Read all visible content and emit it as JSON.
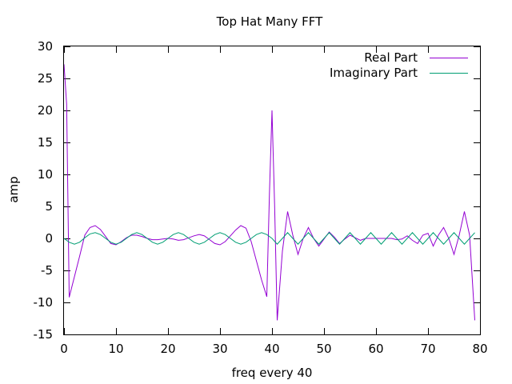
{
  "chart_data": {
    "type": "line",
    "title": "Top Hat Many FFT",
    "xlabel": "freq every 40",
    "ylabel": "amp",
    "xlim": [
      0,
      80
    ],
    "ylim": [
      -15,
      30
    ],
    "x_ticks": [
      0,
      10,
      20,
      30,
      40,
      50,
      60,
      70,
      80
    ],
    "y_ticks": [
      -15,
      -10,
      -5,
      0,
      5,
      10,
      15,
      20,
      25,
      30
    ],
    "grid": false,
    "legend_position": "top-right",
    "series": [
      {
        "name": "Real Part",
        "color": "#9400d3",
        "points": [
          [
            0,
            27.2
          ],
          [
            0.5,
            21
          ],
          [
            1,
            -9.2
          ],
          [
            2,
            -6
          ],
          [
            3,
            -2.8
          ],
          [
            4,
            0.5
          ],
          [
            5,
            1.7
          ],
          [
            6,
            2
          ],
          [
            7,
            1.4
          ],
          [
            8,
            0.3
          ],
          [
            9,
            -0.8
          ],
          [
            10,
            -1
          ],
          [
            11,
            -0.5
          ],
          [
            12,
            0.1
          ],
          [
            13,
            0.5
          ],
          [
            14,
            0.5
          ],
          [
            15,
            0.3
          ],
          [
            16,
            0
          ],
          [
            17,
            -0.2
          ],
          [
            18,
            -0.2
          ],
          [
            19,
            -0.1
          ],
          [
            20,
            0
          ],
          [
            21,
            -0.1
          ],
          [
            22,
            -0.3
          ],
          [
            23,
            -0.2
          ],
          [
            24,
            0.1
          ],
          [
            25,
            0.4
          ],
          [
            26,
            0.6
          ],
          [
            27,
            0.4
          ],
          [
            28,
            -0.2
          ],
          [
            29,
            -0.8
          ],
          [
            30,
            -1
          ],
          [
            31,
            -0.5
          ],
          [
            32,
            0.4
          ],
          [
            33,
            1.3
          ],
          [
            34,
            2
          ],
          [
            35,
            1.6
          ],
          [
            36,
            -0.5
          ],
          [
            37,
            -3.5
          ],
          [
            38,
            -6.5
          ],
          [
            39,
            -9.1
          ],
          [
            39.5,
            7
          ],
          [
            40,
            20
          ],
          [
            40.5,
            5
          ],
          [
            41,
            -12.8
          ],
          [
            42,
            -2
          ],
          [
            43,
            4.2
          ],
          [
            44,
            0.5
          ],
          [
            45,
            -2.5
          ],
          [
            46,
            0
          ],
          [
            47,
            1.7
          ],
          [
            48,
            0
          ],
          [
            49,
            -1.2
          ],
          [
            50,
            -0.1
          ],
          [
            51,
            1
          ],
          [
            52,
            0.2
          ],
          [
            53,
            -0.8
          ],
          [
            54,
            -0.1
          ],
          [
            55,
            0.5
          ],
          [
            56,
            0.1
          ],
          [
            57,
            -0.3
          ],
          [
            58,
            0
          ],
          [
            59,
            0
          ],
          [
            60,
            0
          ],
          [
            61,
            0
          ],
          [
            62,
            0
          ],
          [
            63,
            0
          ],
          [
            64,
            -0.2
          ],
          [
            65,
            -0.1
          ],
          [
            66,
            0.4
          ],
          [
            67,
            -0.3
          ],
          [
            68,
            -0.8
          ],
          [
            69,
            0.5
          ],
          [
            70,
            0.8
          ],
          [
            71,
            -1.2
          ],
          [
            72,
            0.5
          ],
          [
            73,
            1.7
          ],
          [
            74,
            0
          ],
          [
            75,
            -2.5
          ],
          [
            76,
            0.5
          ],
          [
            77,
            4.2
          ],
          [
            78,
            0.5
          ],
          [
            79,
            -12.8
          ]
        ]
      },
      {
        "name": "Imaginary Part",
        "color": "#009e73",
        "points": [
          [
            0,
            0
          ],
          [
            1,
            -0.6
          ],
          [
            2,
            -0.9
          ],
          [
            3,
            -0.6
          ],
          [
            4,
            0.1
          ],
          [
            5,
            0.7
          ],
          [
            6,
            0.9
          ],
          [
            7,
            0.6
          ],
          [
            8,
            0
          ],
          [
            9,
            -0.6
          ],
          [
            10,
            -0.9
          ],
          [
            11,
            -0.6
          ],
          [
            12,
            0
          ],
          [
            13,
            0.6
          ],
          [
            14,
            0.9
          ],
          [
            15,
            0.6
          ],
          [
            16,
            0
          ],
          [
            17,
            -0.6
          ],
          [
            18,
            -0.9
          ],
          [
            19,
            -0.6
          ],
          [
            20,
            0
          ],
          [
            21,
            0.6
          ],
          [
            22,
            0.9
          ],
          [
            23,
            0.6
          ],
          [
            24,
            0
          ],
          [
            25,
            -0.6
          ],
          [
            26,
            -0.9
          ],
          [
            27,
            -0.6
          ],
          [
            28,
            0
          ],
          [
            29,
            0.6
          ],
          [
            30,
            0.9
          ],
          [
            31,
            0.6
          ],
          [
            32,
            0
          ],
          [
            33,
            -0.6
          ],
          [
            34,
            -0.9
          ],
          [
            35,
            -0.6
          ],
          [
            36,
            0
          ],
          [
            37,
            0.6
          ],
          [
            38,
            0.9
          ],
          [
            39,
            0.6
          ],
          [
            40,
            0
          ],
          [
            41,
            -0.9
          ],
          [
            42,
            0
          ],
          [
            43,
            0.9
          ],
          [
            44,
            0
          ],
          [
            45,
            -0.9
          ],
          [
            46,
            0
          ],
          [
            47,
            0.9
          ],
          [
            48,
            0
          ],
          [
            49,
            -0.9
          ],
          [
            50,
            0
          ],
          [
            51,
            0.9
          ],
          [
            52,
            0
          ],
          [
            53,
            -0.9
          ],
          [
            54,
            0
          ],
          [
            55,
            0.9
          ],
          [
            56,
            0
          ],
          [
            57,
            -0.9
          ],
          [
            58,
            0
          ],
          [
            59,
            0.9
          ],
          [
            60,
            0
          ],
          [
            61,
            -0.9
          ],
          [
            62,
            0
          ],
          [
            63,
            0.9
          ],
          [
            64,
            0
          ],
          [
            65,
            -0.9
          ],
          [
            66,
            0
          ],
          [
            67,
            0.9
          ],
          [
            68,
            0
          ],
          [
            69,
            -0.9
          ],
          [
            70,
            0
          ],
          [
            71,
            0.9
          ],
          [
            72,
            0
          ],
          [
            73,
            -0.9
          ],
          [
            74,
            0
          ],
          [
            75,
            0.9
          ],
          [
            76,
            0
          ],
          [
            77,
            -0.9
          ],
          [
            78,
            0
          ],
          [
            79,
            0.9
          ]
        ]
      }
    ]
  }
}
